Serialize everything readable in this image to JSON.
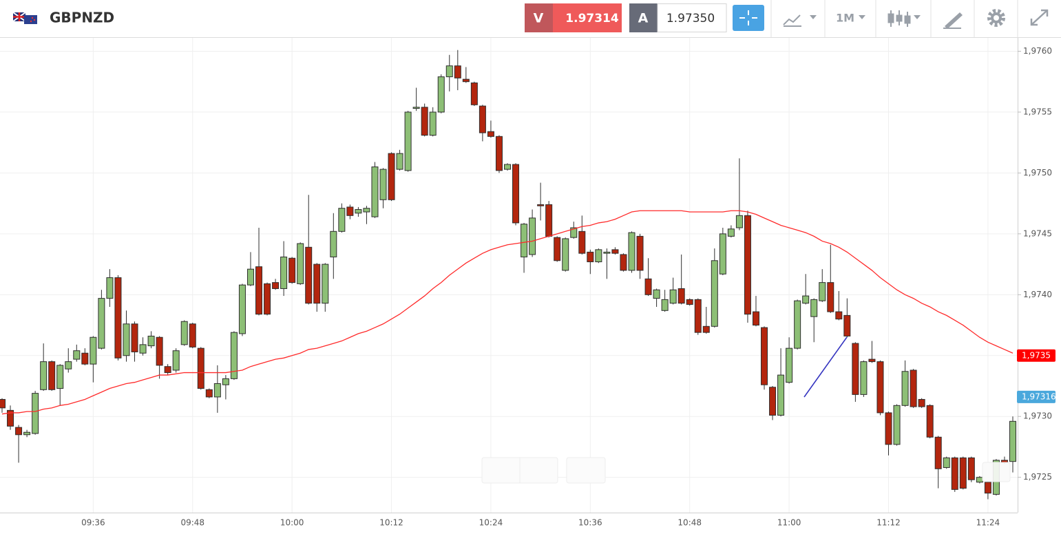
{
  "header": {
    "symbol": "GBPNZD",
    "sell_label": "V",
    "sell_price": "1.97314",
    "buy_label": "A",
    "buy_price": "1.97350",
    "timeframe": "1M"
  },
  "chart_data": {
    "type": "candlestick",
    "categories": [
      null,
      null,
      null,
      null,
      null,
      null,
      null,
      null,
      null,
      null,
      null,
      "09:36",
      null,
      null,
      null,
      null,
      null,
      null,
      null,
      null,
      null,
      null,
      null,
      "09:48",
      null,
      null,
      null,
      null,
      null,
      null,
      null,
      null,
      null,
      null,
      null,
      "10:00",
      null,
      null,
      null,
      null,
      null,
      null,
      null,
      null,
      null,
      null,
      null,
      "10:12",
      null,
      null,
      null,
      null,
      null,
      null,
      null,
      null,
      null,
      null,
      null,
      "10:24",
      null,
      null,
      null,
      null,
      null,
      null,
      null,
      null,
      null,
      null,
      null,
      "10:36",
      null,
      null,
      null,
      null,
      null,
      null,
      null,
      null,
      null,
      null,
      null,
      "10:48",
      null,
      null,
      null,
      null,
      null,
      null,
      null,
      null,
      null,
      null,
      null,
      "11:00",
      null,
      null,
      null,
      null,
      null,
      null,
      null,
      null,
      null,
      null,
      null,
      "11:12",
      null,
      null,
      null,
      null,
      null,
      null,
      null,
      null,
      null,
      null,
      null,
      "11:24",
      null,
      null,
      null
    ],
    "open": [
      1.97314,
      1.97305,
      1.97291,
      1.97285,
      1.97286,
      1.97322,
      1.97345,
      1.97323,
      1.97339,
      1.97347,
      1.97352,
      1.97343,
      1.97356,
      1.97397,
      1.97414,
      1.9735,
      1.97376,
      1.97352,
      1.97358,
      1.97365,
      1.97341,
      1.97338,
      1.97359,
      1.97376,
      1.97356,
      1.97322,
      1.97316,
      1.97326,
      1.97331,
      1.97368,
      1.97408,
      1.97423,
      1.97409,
      1.9741,
      1.97405,
      1.9743,
      1.97409,
      1.97439,
      1.97425,
      1.97393,
      1.97431,
      1.97452,
      1.97472,
      1.97467,
      1.97468,
      1.97464,
      1.97478,
      1.97516,
      1.97503,
      1.97502,
      1.97553,
      1.97554,
      1.97531,
      1.9755,
      1.97579,
      1.97588,
      1.97577,
      1.97574,
      1.97555,
      1.97534,
      1.9753,
      1.97503,
      1.97507,
      1.97431,
      1.97433,
      1.97474,
      1.97474,
      1.97447,
      1.9742,
      1.97447,
      1.97452,
      1.97435,
      1.97427,
      1.97434,
      1.97437,
      1.97433,
      1.9742,
      1.97448,
      1.97413,
      1.97397,
      1.97387,
      1.97393,
      1.97405,
      1.97396,
      1.97396,
      1.97374,
      1.97374,
      1.97417,
      1.97448,
      1.97455,
      1.97465,
      1.97386,
      1.97373,
      1.97324,
      1.97301,
      1.97328,
      1.97356,
      1.97393,
      1.97382,
      1.97395,
      1.9741,
      1.97386,
      1.97383,
      1.9736,
      1.97318,
      1.97347,
      1.97345,
      1.97303,
      1.97277,
      1.97309,
      1.97338,
      1.97314,
      1.97309,
      1.97283,
      1.97258,
      1.97266,
      1.97266,
      1.97266,
      1.97246,
      1.97246,
      1.97236,
      1.97264,
      1.97263
    ],
    "high": [
      1.97315,
      1.97309,
      1.97293,
      1.97289,
      1.97321,
      1.9736,
      1.97346,
      1.97343,
      1.97356,
      1.97359,
      1.97356,
      1.97366,
      1.97404,
      1.97421,
      1.97416,
      1.97387,
      1.97378,
      1.97365,
      1.9737,
      1.97366,
      1.97343,
      1.97356,
      1.97379,
      1.97377,
      1.97357,
      1.97323,
      1.97342,
      1.97334,
      1.9737,
      1.97409,
      1.97435,
      1.97455,
      1.9741,
      1.97413,
      1.97444,
      1.97431,
      1.97443,
      1.97482,
      1.97426,
      1.97426,
      1.97467,
      1.97475,
      1.97474,
      1.97472,
      1.97473,
      1.97509,
      1.97504,
      1.97517,
      1.97519,
      1.97551,
      1.9757,
      1.97557,
      1.97554,
      1.97581,
      1.97597,
      1.97601,
      1.97587,
      1.97575,
      1.97556,
      1.97543,
      1.97531,
      1.97508,
      1.97508,
      1.97459,
      1.9747,
      1.97492,
      1.97477,
      1.97448,
      1.97447,
      1.9746,
      1.97465,
      1.97437,
      1.97438,
      1.97438,
      1.97439,
      1.97434,
      1.97452,
      1.9745,
      1.9743,
      1.97405,
      1.97404,
      1.97414,
      1.97433,
      1.97397,
      1.97397,
      1.9739,
      1.97438,
      1.97455,
      1.97457,
      1.97512,
      1.97469,
      1.97399,
      1.97374,
      1.97325,
      1.97356,
      1.97365,
      1.97396,
      1.97417,
      1.97397,
      1.97421,
      1.97441,
      1.97403,
      1.97397,
      1.97361,
      1.97346,
      1.97362,
      1.97346,
      1.97304,
      1.9731,
      1.97346,
      1.97339,
      1.97315,
      1.9731,
      1.97284,
      1.97267,
      1.97267,
      1.97267,
      1.97267,
      1.97251,
      1.97247,
      1.97265,
      1.97267,
      1.973
    ],
    "low": [
      1.97303,
      1.97289,
      1.97262,
      1.97283,
      1.97285,
      1.97321,
      1.97321,
      1.97309,
      1.97336,
      1.97345,
      1.97342,
      1.97328,
      1.97355,
      1.9739,
      1.97346,
      1.97345,
      1.97345,
      1.9735,
      1.97356,
      1.97331,
      1.97334,
      1.97336,
      1.97358,
      1.97356,
      1.97322,
      1.97315,
      1.97303,
      1.97314,
      1.9733,
      1.97366,
      1.97407,
      1.97383,
      1.97383,
      1.97404,
      1.97399,
      1.97409,
      1.97408,
      1.97392,
      1.97386,
      1.97386,
      1.97413,
      1.97451,
      1.97462,
      1.97464,
      1.97458,
      1.97463,
      1.97471,
      1.97477,
      1.97502,
      1.97501,
      1.97551,
      1.9753,
      1.9753,
      1.97549,
      1.97567,
      1.97568,
      1.97574,
      1.97555,
      1.97526,
      1.97529,
      1.975,
      1.97502,
      1.97457,
      1.97418,
      1.97431,
      1.97461,
      1.97447,
      1.97427,
      1.97419,
      1.97446,
      1.97433,
      1.97417,
      1.97426,
      1.97413,
      1.97433,
      1.97419,
      1.97418,
      1.97413,
      1.97399,
      1.9739,
      1.97386,
      1.97392,
      1.97392,
      1.97391,
      1.97367,
      1.97368,
      1.97373,
      1.97416,
      1.97447,
      1.97453,
      1.97377,
      1.97374,
      1.97322,
      1.97297,
      1.973,
      1.97327,
      1.97355,
      1.97392,
      1.97361,
      1.97394,
      1.97385,
      1.97379,
      1.97365,
      1.97312,
      1.97316,
      1.97344,
      1.97301,
      1.97268,
      1.97276,
      1.97308,
      1.97307,
      1.97307,
      1.97282,
      1.97241,
      1.97257,
      1.97238,
      1.9724,
      1.97246,
      1.97245,
      1.97232,
      1.97235,
      1.97261,
      1.97254
    ],
    "close": [
      1.97307,
      1.97292,
      1.97285,
      1.97287,
      1.97319,
      1.97345,
      1.97322,
      1.97342,
      1.97345,
      1.97354,
      1.97343,
      1.97365,
      1.97397,
      1.97414,
      1.97348,
      1.97376,
      1.97353,
      1.97359,
      1.97366,
      1.97342,
      1.97336,
      1.97354,
      1.97378,
      1.97357,
      1.97323,
      1.97316,
      1.97327,
      1.97331,
      1.97369,
      1.97408,
      1.97421,
      1.97384,
      1.97384,
      1.97405,
      1.97431,
      1.9741,
      1.97442,
      1.97393,
      1.97393,
      1.97425,
      1.97452,
      1.97471,
      1.97465,
      1.9747,
      1.97471,
      1.97505,
      1.97503,
      1.97478,
      1.97516,
      1.9755,
      1.97554,
      1.97531,
      1.9755,
      1.97579,
      1.97588,
      1.97578,
      1.97575,
      1.97556,
      1.97533,
      1.9753,
      1.97502,
      1.97507,
      1.97459,
      1.97458,
      1.97463,
      1.97473,
      1.97448,
      1.97428,
      1.97446,
      1.97455,
      1.97434,
      1.97427,
      1.97437,
      1.97435,
      1.97434,
      1.9742,
      1.97451,
      1.9742,
      1.974,
      1.97404,
      1.97396,
      1.97404,
      1.97393,
      1.97392,
      1.97369,
      1.97369,
      1.97428,
      1.9745,
      1.97454,
      1.97465,
      1.97384,
      1.97375,
      1.97326,
      1.97301,
      1.97334,
      1.97356,
      1.97395,
      1.97399,
      1.97396,
      1.9741,
      1.97386,
      1.9738,
      1.97366,
      1.97318,
      1.97345,
      1.97345,
      1.97303,
      1.97277,
      1.97309,
      1.97337,
      1.97308,
      1.97308,
      1.97283,
      1.97257,
      1.97266,
      1.9724,
      1.97241,
      1.97248,
      1.9725,
      1.97237,
      1.97264,
      1.97262,
      1.97296
    ],
    "up_color": "#8dbf76",
    "down_color": "#b3260e",
    "outline_color": "#2e2e2e",
    "ma": {
      "color": "#ff2a2a",
      "values": [
        1.97302,
        1.97303,
        1.97303,
        1.97304,
        1.97304,
        1.97306,
        1.97307,
        1.97309,
        1.9731,
        1.97312,
        1.97314,
        1.97317,
        1.9732,
        1.97323,
        1.97325,
        1.97327,
        1.97328,
        1.9733,
        1.97332,
        1.97334,
        1.97334,
        1.97335,
        1.97336,
        1.97336,
        1.97336,
        1.97336,
        1.97336,
        1.97336,
        1.97337,
        1.97338,
        1.97341,
        1.97343,
        1.97345,
        1.97347,
        1.97348,
        1.9735,
        1.97352,
        1.97355,
        1.97356,
        1.97358,
        1.9736,
        1.97362,
        1.97365,
        1.97368,
        1.9737,
        1.97373,
        1.97376,
        1.9738,
        1.97384,
        1.97389,
        1.97394,
        1.97399,
        1.97405,
        1.9741,
        1.97416,
        1.97421,
        1.97426,
        1.9743,
        1.97434,
        1.97437,
        1.97439,
        1.97441,
        1.97442,
        1.97443,
        1.97444,
        1.97446,
        1.97448,
        1.9745,
        1.97452,
        1.97454,
        1.97456,
        1.97457,
        1.97459,
        1.9746,
        1.97462,
        1.97465,
        1.97468,
        1.97469,
        1.97469,
        1.97469,
        1.97469,
        1.97469,
        1.97469,
        1.97468,
        1.97468,
        1.97468,
        1.97468,
        1.97468,
        1.97469,
        1.97469,
        1.97468,
        1.97466,
        1.97463,
        1.9746,
        1.97457,
        1.97455,
        1.97453,
        1.97451,
        1.97448,
        1.97444,
        1.97442,
        1.97439,
        1.97435,
        1.9743,
        1.97425,
        1.9742,
        1.97414,
        1.97409,
        1.97404,
        1.974,
        1.97397,
        1.97393,
        1.9739,
        1.97386,
        1.97383,
        1.97379,
        1.97375,
        1.9737,
        1.97365,
        1.97361,
        1.97358,
        1.97355,
        1.97352
      ]
    },
    "ylim": [
      1.97221,
      1.97611
    ],
    "yticks": [
      {
        "value": 1.9725,
        "label": "1,9725"
      },
      {
        "value": 1.973,
        "label": "1,9730"
      },
      {
        "value": 1.9735,
        "label": "1,9735"
      },
      {
        "value": 1.974,
        "label": "1,9740"
      },
      {
        "value": 1.9745,
        "label": "1,9745"
      },
      {
        "value": 1.975,
        "label": "1,9750"
      },
      {
        "value": 1.9755,
        "label": "1,9755"
      },
      {
        "value": 1.976,
        "label": "1,9760"
      }
    ],
    "markers": [
      {
        "value": 1.9735,
        "label": "1,9735",
        "color": "#ff0000"
      },
      {
        "value": 1.97316,
        "label": "1,97316",
        "color": "#4aa8dc"
      }
    ],
    "grid": true
  }
}
